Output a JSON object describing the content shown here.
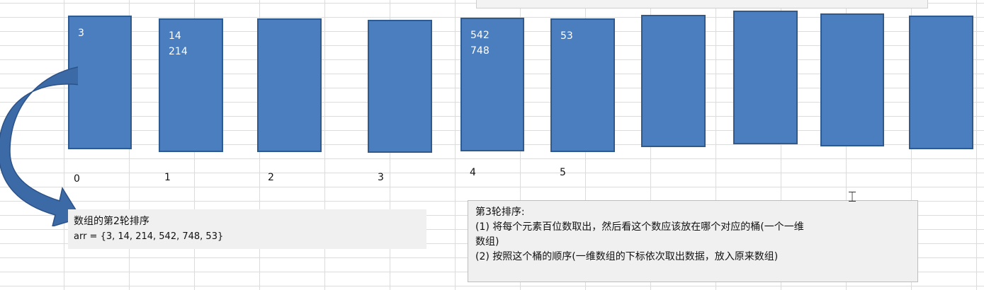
{
  "buckets": [
    {
      "index": "0",
      "values": [
        "3"
      ]
    },
    {
      "index": "1",
      "values": [
        "14",
        "214"
      ]
    },
    {
      "index": "2",
      "values": []
    },
    {
      "index": "3",
      "values": []
    },
    {
      "index": "4",
      "values": [
        "542",
        "748"
      ]
    },
    {
      "index": "5",
      "values": [
        "53"
      ]
    },
    {
      "index": "",
      "values": []
    },
    {
      "index": "",
      "values": []
    },
    {
      "index": "",
      "values": []
    },
    {
      "index": "",
      "values": []
    }
  ],
  "left_note": {
    "title": "数组的第2轮排序",
    "array": "arr = {3, 14, 214, 542, 748, 53}"
  },
  "right_note": {
    "title": "第3轮排序:",
    "step1_line1": "(1) 将每个元素百位数取出，然后看这个数应该放在哪个对应的桶(一个一维",
    "step1_line2": "数组)",
    "step2": "(2) 按照这个桶的顺序(一维数组的下标依次取出数据，放入原来数组)"
  },
  "colors": {
    "bucket_fill": "#4a7ebf",
    "arrow_fill": "#3c6aa6"
  },
  "icons": {
    "cursor": "text-cursor-icon",
    "arrow": "curved-arrow-icon"
  }
}
